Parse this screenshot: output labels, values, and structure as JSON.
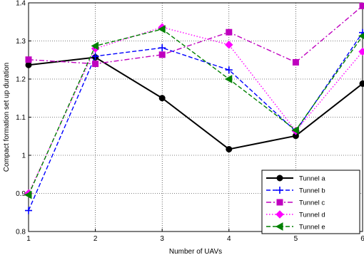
{
  "chart_data": {
    "type": "line",
    "title": "",
    "xlabel": "Number of UAVs",
    "ylabel": "Compact formation set up duration",
    "xlim": [
      1,
      6
    ],
    "ylim": [
      0.8,
      1.4
    ],
    "xticks": [
      "1",
      "2",
      "3",
      "4",
      "5",
      "6"
    ],
    "yticks": [
      "0.8",
      "0.9",
      "1",
      "1.1",
      "1.2",
      "1.3",
      "1.4"
    ],
    "x": [
      1,
      2,
      3,
      4,
      5,
      6
    ],
    "grid": true,
    "legend_position": "bottom-right",
    "series": [
      {
        "name": "Tunnel a",
        "values": [
          1.237,
          1.257,
          1.15,
          1.016,
          1.051,
          1.188
        ],
        "color": "#000000",
        "dash": "solid",
        "marker": "circle"
      },
      {
        "name": "Tunnel b",
        "values": [
          0.855,
          1.26,
          1.282,
          1.224,
          1.063,
          1.322
        ],
        "color": "#0000ff",
        "dash": "dashed",
        "marker": "plus"
      },
      {
        "name": "Tunnel c",
        "values": [
          1.251,
          1.24,
          1.264,
          1.323,
          1.244,
          1.392
        ],
        "color": "#bf00bf",
        "dash": "dashdot",
        "marker": "square"
      },
      {
        "name": "Tunnel d",
        "values": [
          0.9,
          1.28,
          1.336,
          1.29,
          1.064,
          1.272
        ],
        "color": "#ff00ff",
        "dash": "dotted",
        "marker": "diamond"
      },
      {
        "name": "Tunnel e",
        "values": [
          0.896,
          1.287,
          1.331,
          1.2,
          1.066,
          1.313
        ],
        "color": "#008000",
        "dash": "dashed",
        "marker": "triangle-left"
      }
    ]
  }
}
